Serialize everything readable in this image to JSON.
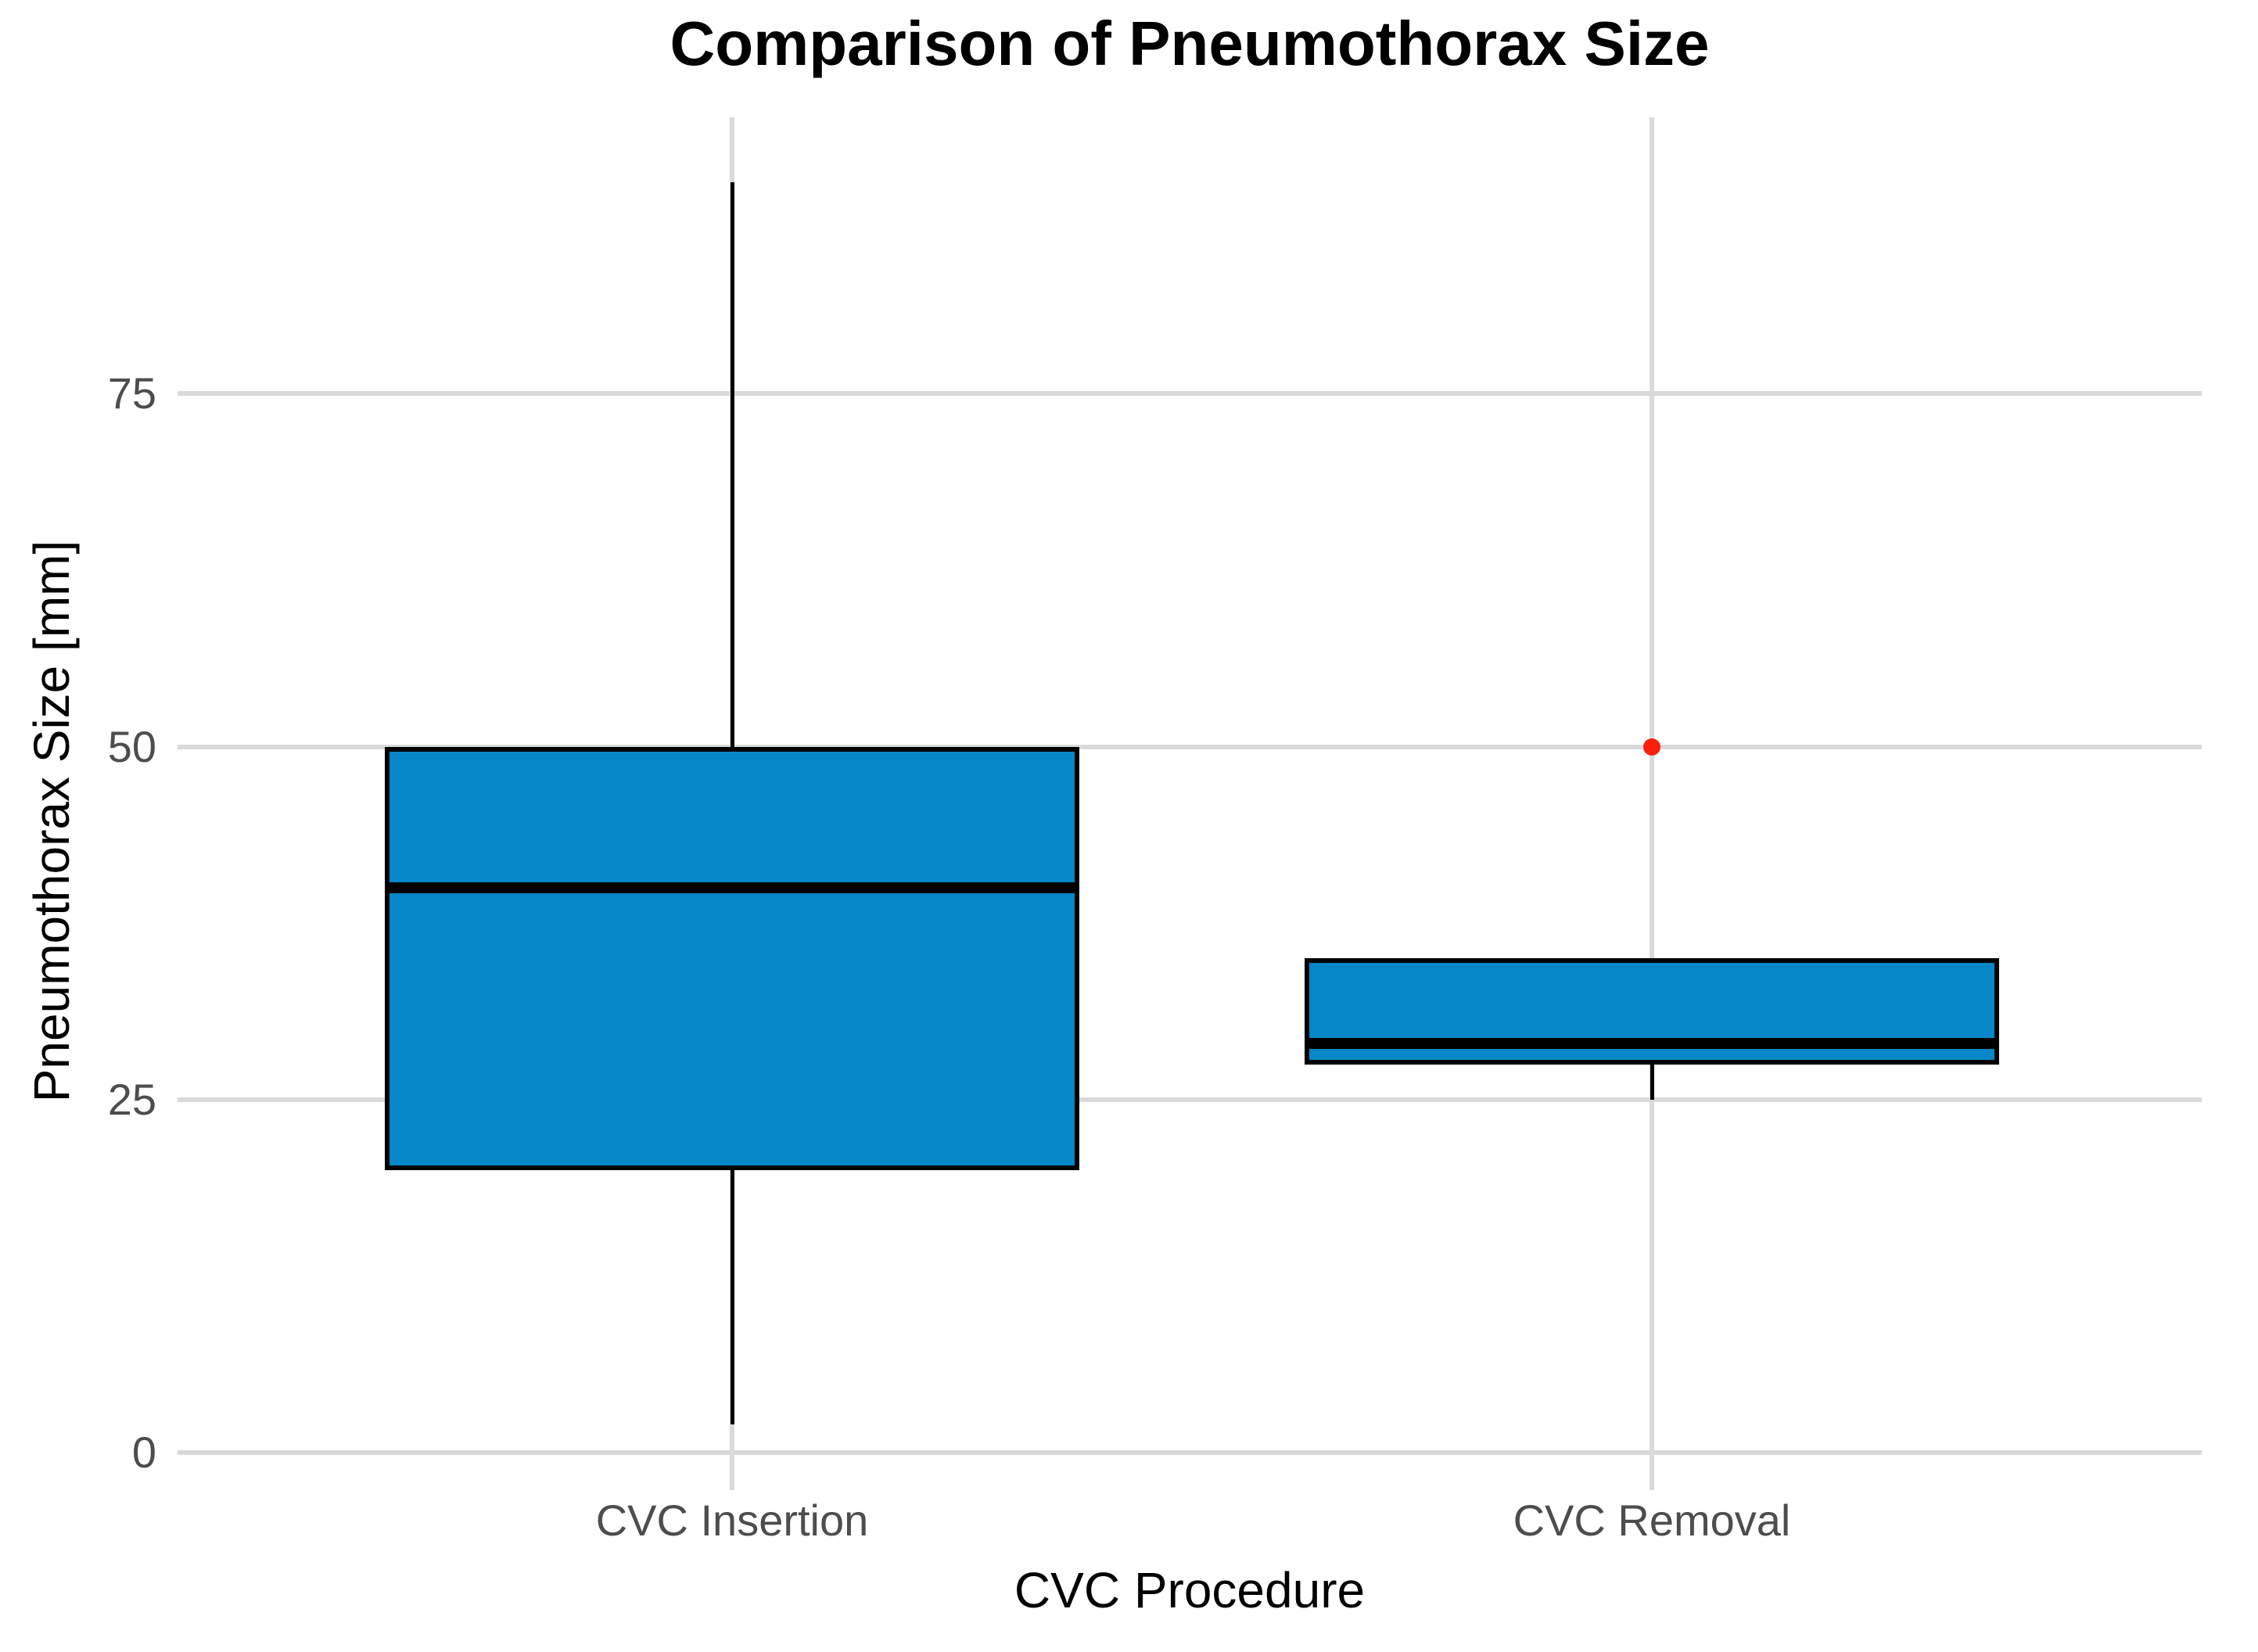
{
  "title": "Comparison of Pneumothorax Size",
  "colors": {
    "box_fill": "#0688C8",
    "box_border": "#000000",
    "median": "#000000",
    "whisker": "#000000",
    "outlier": "#FA200D",
    "gridline": "#DADADA",
    "tick_label": "#4D4D4D",
    "axis_title": "#000000",
    "background": "#FFFFFF"
  },
  "chart_data": {
    "type": "boxplot",
    "title": "Comparison of Pneumothorax Size",
    "xlabel": "CVC Procedure",
    "ylabel": "Pneumothorax Size [mm]",
    "categories": [
      "CVC Insertion",
      "CVC Removal"
    ],
    "yticks": [
      0,
      25,
      50,
      75
    ],
    "ylim": [
      -3,
      94
    ],
    "grid": "major-gridlines-on-light-gray",
    "legend": "none",
    "series": [
      {
        "name": "CVC Insertion",
        "whisker_low": 2,
        "q1": 20,
        "median": 40,
        "q3": 50,
        "whisker_high": 90,
        "outliers": []
      },
      {
        "name": "CVC Removal",
        "whisker_low": 25,
        "q1": 27.5,
        "median": 29,
        "q3": 35,
        "whisker_high": 35,
        "outliers": [
          50
        ]
      }
    ]
  }
}
